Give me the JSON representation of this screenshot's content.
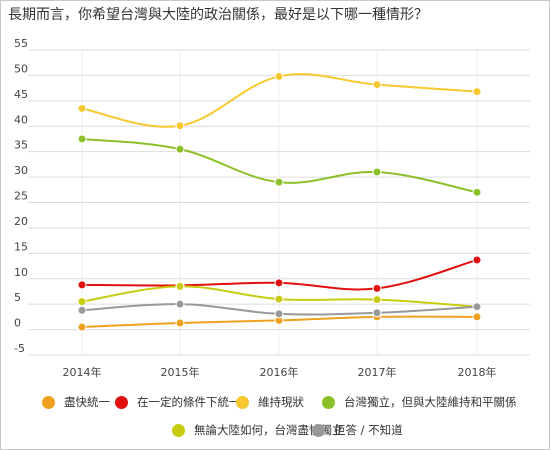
{
  "title": "長期而言，你希望台灣與大陸的政治關係，最好是以下哪一種情形？",
  "chart_data": {
    "type": "line",
    "title": "長期而言，你希望台灣與大陸的政治關係，最好是以下哪一種情形？",
    "categories": [
      "2014年",
      "2015年",
      "2016年",
      "2017年",
      "2018年"
    ],
    "ylim": [
      -5,
      55
    ],
    "yticks": [
      "55",
      "50",
      "45",
      "40",
      "35",
      "30",
      "25",
      "20",
      "15",
      "10",
      "5",
      "0",
      "-5"
    ],
    "grid": true,
    "legend_position": "bottom",
    "series": [
      {
        "name": "盡快統一",
        "color": "#f0a020",
        "values": [
          0.5,
          1.3,
          1.8,
          2.5,
          2.5
        ]
      },
      {
        "name": "在一定的條件下統一",
        "color": "#e01010",
        "values": [
          8.8,
          8.7,
          9.2,
          8.1,
          13.7
        ]
      },
      {
        "name": "維持現狀",
        "color": "#f8c830",
        "values": [
          43.5,
          40.1,
          49.8,
          48.2,
          46.8
        ]
      },
      {
        "name": "台灣獨立，但與大陸維持和平關係",
        "color": "#8cc028",
        "values": [
          37.5,
          35.5,
          29.0,
          31.0,
          27.0
        ]
      },
      {
        "name": "無論大陸如何，台灣盡快獨立",
        "color": "#c8cc10",
        "values": [
          5.5,
          8.5,
          6.0,
          5.9,
          4.5
        ]
      },
      {
        "name": "拒答 / 不知道",
        "color": "#999999",
        "values": [
          3.8,
          5.0,
          3.1,
          3.3,
          4.5
        ]
      }
    ]
  }
}
